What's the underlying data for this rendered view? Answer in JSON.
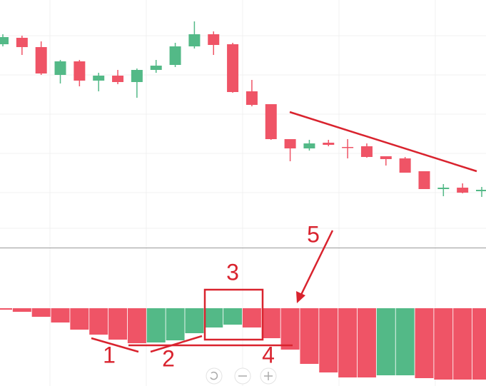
{
  "chart_data": [
    {
      "type": "candlestick",
      "up_color": "#53b987",
      "down_color": "#ef5466",
      "ylim": [
        3,
        350
      ],
      "open": [
        288,
        297,
        284,
        245,
        264,
        237,
        244,
        235,
        252,
        259,
        285,
        302,
        288,
        222,
        204,
        155,
        142,
        150,
        144,
        145,
        131,
        128,
        110,
        85,
        87,
        82
      ],
      "high": [
        302,
        300,
        292,
        266,
        266,
        248,
        252,
        254,
        266,
        290,
        320,
        306,
        290,
        238,
        204,
        155,
        154,
        154,
        155,
        149,
        131,
        130,
        110,
        92,
        93,
        88
      ],
      "low": [
        285,
        273,
        245,
        233,
        229,
        222,
        232,
        213,
        248,
        256,
        282,
        273,
        220,
        201,
        154,
        124,
        139,
        145,
        128,
        129,
        118,
        108,
        85,
        75,
        79,
        74
      ],
      "close": [
        298,
        284,
        247,
        264,
        237,
        244,
        235,
        252,
        258,
        285,
        302,
        287,
        221,
        203,
        155,
        142,
        149,
        147,
        143,
        130,
        127,
        108,
        85,
        87,
        80,
        84
      ]
    },
    {
      "type": "bar",
      "ylim": [
        -109,
        85
      ],
      "values": [
        -2,
        -5,
        -12,
        -20,
        -30,
        -37,
        -44,
        -49,
        -48,
        -45,
        -35,
        -27,
        -23,
        -27,
        -42,
        -58,
        -78,
        -90,
        -97,
        -97,
        -94,
        -94,
        -98,
        -100,
        -100,
        -100
      ],
      "colors": [
        "#ef5466",
        "#ef5466",
        "#ef5466",
        "#ef5466",
        "#ef5466",
        "#ef5466",
        "#ef5466",
        "#ef5466",
        "#53b987",
        "#53b987",
        "#53b987",
        "#53b987",
        "#53b987",
        "#ef5466",
        "#ef5466",
        "#ef5466",
        "#ef5466",
        "#ef5466",
        "#ef5466",
        "#ef5466",
        "#53b987",
        "#53b987",
        "#ef5466",
        "#ef5466",
        "#ef5466",
        "#ef5466"
      ],
      "annotations": [
        "1",
        "2",
        "3",
        "4",
        "5"
      ]
    }
  ]
}
